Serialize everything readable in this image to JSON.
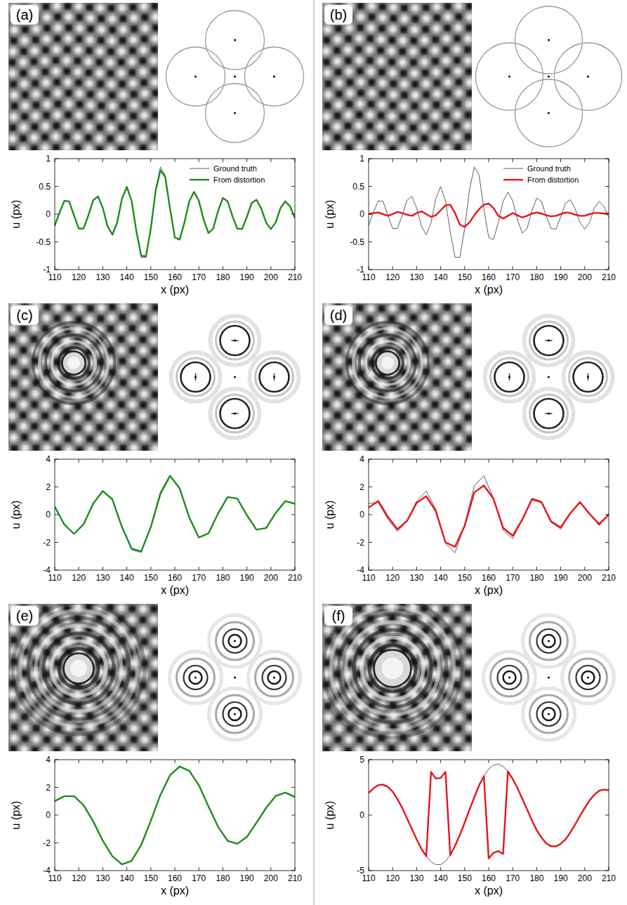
{
  "chart_data": [
    {
      "type": "line",
      "title": "(a)",
      "x_label": "x (px)",
      "y_label": "u (px)",
      "legend": "upper right",
      "x": [
        110,
        112,
        114,
        116,
        118,
        120,
        122,
        124,
        126,
        128,
        130,
        132,
        134,
        136,
        138,
        140,
        142,
        144,
        146,
        148,
        150,
        152,
        154,
        156,
        158,
        160,
        162,
        164,
        166,
        168,
        170,
        172,
        174,
        176,
        178,
        180,
        182,
        184,
        186,
        188,
        190,
        192,
        194,
        196,
        198,
        200,
        202,
        204,
        206,
        208,
        210
      ],
      "xlim": [
        110,
        210
      ],
      "ylim": [
        -1,
        1
      ],
      "xticks": [
        110,
        120,
        130,
        140,
        150,
        160,
        170,
        180,
        190,
        200,
        210
      ],
      "yticks": [
        -1,
        -0.5,
        0,
        0.5,
        1
      ],
      "series": [
        {
          "name": "Ground truth",
          "color": "#4d4d4d",
          "values": [
            -0.2,
            0.03,
            0.24,
            0.23,
            -0.02,
            -0.26,
            -0.26,
            -0.02,
            0.25,
            0.32,
            0.11,
            -0.22,
            -0.37,
            -0.15,
            0.28,
            0.5,
            0.24,
            -0.32,
            -0.78,
            -0.78,
            -0.26,
            0.44,
            0.85,
            0.7,
            0.1,
            -0.42,
            -0.46,
            -0.15,
            0.23,
            0.4,
            0.24,
            -0.1,
            -0.34,
            -0.26,
            0.06,
            0.29,
            0.23,
            -0.04,
            -0.26,
            -0.27,
            -0.05,
            0.2,
            0.26,
            0.1,
            -0.15,
            -0.27,
            -0.15,
            0.11,
            0.23,
            0.14,
            -0.06
          ]
        },
        {
          "name": "From distortion",
          "color": "#1f8c1f",
          "values": [
            -0.21,
            0.03,
            0.24,
            0.23,
            -0.02,
            -0.26,
            -0.26,
            -0.02,
            0.25,
            0.32,
            0.11,
            -0.22,
            -0.37,
            -0.15,
            0.28,
            0.49,
            0.24,
            -0.31,
            -0.75,
            -0.76,
            -0.26,
            0.42,
            0.79,
            0.67,
            0.1,
            -0.42,
            -0.46,
            -0.15,
            0.23,
            0.4,
            0.24,
            -0.1,
            -0.34,
            -0.26,
            0.06,
            0.29,
            0.23,
            -0.04,
            -0.26,
            -0.27,
            -0.05,
            0.2,
            0.26,
            0.1,
            -0.15,
            -0.27,
            -0.15,
            0.11,
            0.23,
            0.14,
            -0.07
          ]
        }
      ]
    },
    {
      "type": "line",
      "title": "(b)",
      "x_label": "x (px)",
      "y_label": "u (px)",
      "legend": "upper right",
      "x": [
        110,
        112,
        114,
        116,
        118,
        120,
        122,
        124,
        126,
        128,
        130,
        132,
        134,
        136,
        138,
        140,
        142,
        144,
        146,
        148,
        150,
        152,
        154,
        156,
        158,
        160,
        162,
        164,
        166,
        168,
        170,
        172,
        174,
        176,
        178,
        180,
        182,
        184,
        186,
        188,
        190,
        192,
        194,
        196,
        198,
        200,
        202,
        204,
        206,
        208,
        210
      ],
      "xlim": [
        110,
        210
      ],
      "ylim": [
        -1,
        1
      ],
      "xticks": [
        110,
        120,
        130,
        140,
        150,
        160,
        170,
        180,
        190,
        200,
        210
      ],
      "yticks": [
        -1,
        -0.5,
        0,
        0.5,
        1
      ],
      "series": [
        {
          "name": "Ground truth",
          "color": "#4d4d4d",
          "values": [
            -0.2,
            0.03,
            0.24,
            0.23,
            -0.02,
            -0.26,
            -0.26,
            -0.02,
            0.25,
            0.32,
            0.11,
            -0.22,
            -0.37,
            -0.15,
            0.28,
            0.5,
            0.24,
            -0.32,
            -0.78,
            -0.78,
            -0.26,
            0.44,
            0.85,
            0.7,
            0.1,
            -0.42,
            -0.46,
            -0.15,
            0.23,
            0.4,
            0.24,
            -0.1,
            -0.34,
            -0.26,
            0.06,
            0.29,
            0.23,
            -0.04,
            -0.26,
            -0.27,
            -0.05,
            0.2,
            0.26,
            0.1,
            -0.15,
            -0.27,
            -0.15,
            0.11,
            0.23,
            0.14,
            -0.06
          ]
        },
        {
          "name": "From distortion",
          "color": "#e8141c",
          "values": [
            0.0,
            0.02,
            0.03,
            0.0,
            -0.03,
            0.0,
            0.04,
            0.02,
            -0.01,
            -0.03,
            0.02,
            0.05,
            0.0,
            -0.05,
            -0.02,
            0.07,
            0.16,
            0.17,
            0.02,
            -0.19,
            -0.23,
            -0.15,
            -0.02,
            0.09,
            0.17,
            0.19,
            0.11,
            -0.03,
            -0.08,
            -0.03,
            0.02,
            -0.02,
            -0.06,
            -0.03,
            0.01,
            0.03,
            0.01,
            -0.02,
            -0.04,
            -0.03,
            0.0,
            0.03,
            0.02,
            -0.01,
            -0.03,
            -0.03,
            0.0,
            0.02,
            0.02,
            0.01,
            0.01
          ]
        }
      ]
    },
    {
      "type": "line",
      "title": "(c)",
      "x_label": "x (px)",
      "y_label": "u (px)",
      "x": [
        110,
        114,
        118,
        122,
        126,
        130,
        134,
        138,
        142,
        146,
        150,
        154,
        158,
        162,
        166,
        170,
        174,
        178,
        182,
        186,
        190,
        194,
        198,
        202,
        206,
        210
      ],
      "xlim": [
        110,
        210
      ],
      "ylim": [
        -4,
        4
      ],
      "xticks": [
        110,
        120,
        130,
        140,
        150,
        160,
        170,
        180,
        190,
        200,
        210
      ],
      "yticks": [
        -4,
        -2,
        0,
        2,
        4
      ],
      "series": [
        {
          "color": "#4d4d4d",
          "values": [
            0.6,
            -0.75,
            -1.4,
            -0.68,
            0.84,
            1.74,
            1.07,
            -0.83,
            -2.53,
            -2.73,
            -0.83,
            1.64,
            2.85,
            1.84,
            -0.23,
            -1.68,
            -1.32,
            0.11,
            1.29,
            1.14,
            -0.06,
            -1.1,
            -0.95,
            0.15,
            1.0,
            0.75
          ]
        },
        {
          "color": "#1f8c1f",
          "values": [
            0.58,
            -0.72,
            -1.38,
            -0.7,
            0.8,
            1.7,
            1.1,
            -0.9,
            -2.45,
            -2.65,
            -0.9,
            1.5,
            2.8,
            1.9,
            -0.2,
            -1.65,
            -1.35,
            0.08,
            1.27,
            1.16,
            -0.04,
            -1.08,
            -0.97,
            0.12,
            0.98,
            0.78
          ]
        }
      ]
    },
    {
      "type": "line",
      "title": "(d)",
      "x_label": "x (px)",
      "y_label": "u (px)",
      "x": [
        110,
        114,
        118,
        122,
        126,
        130,
        134,
        138,
        142,
        146,
        150,
        154,
        158,
        162,
        166,
        170,
        174,
        178,
        182,
        186,
        190,
        194,
        198,
        202,
        206,
        210
      ],
      "xlim": [
        110,
        210
      ],
      "ylim": [
        -4,
        4
      ],
      "xticks": [
        110,
        120,
        130,
        140,
        150,
        160,
        170,
        180,
        190,
        200,
        210
      ],
      "yticks": [
        -4,
        -2,
        0,
        2,
        4
      ],
      "series": [
        {
          "color": "#4d4d4d",
          "values": [
            0.8,
            0.89,
            -0.32,
            -1.2,
            -0.48,
            0.98,
            1.7,
            0.38,
            -2.08,
            -2.75,
            -0.72,
            2.06,
            2.82,
            1.16,
            -1.11,
            -1.73,
            -0.35,
            1.19,
            0.96,
            -0.54,
            -1.04,
            0.11,
            0.95,
            0.08,
            -0.8,
            0.1
          ]
        },
        {
          "color": "#e8141c",
          "values": [
            0.5,
            0.98,
            -0.15,
            -1.05,
            -0.45,
            0.85,
            1.33,
            0.25,
            -2.0,
            -2.32,
            -0.8,
            1.6,
            2.1,
            1.15,
            -0.95,
            -1.52,
            -0.35,
            1.1,
            0.9,
            -0.5,
            -0.92,
            0.1,
            0.9,
            0.05,
            -0.68,
            0.0
          ]
        }
      ]
    },
    {
      "type": "line",
      "title": "(e)",
      "x_label": "x (px)",
      "y_label": "u (px)",
      "x": [
        110,
        114,
        118,
        122,
        126,
        130,
        134,
        138,
        142,
        146,
        150,
        154,
        158,
        162,
        166,
        170,
        174,
        178,
        182,
        186,
        190,
        194,
        198,
        202,
        206,
        210
      ],
      "xlim": [
        110,
        210
      ],
      "ylim": [
        -4,
        4
      ],
      "xticks": [
        110,
        120,
        130,
        140,
        150,
        160,
        170,
        180,
        190,
        200,
        210
      ],
      "yticks": [
        -4,
        -2,
        0,
        2,
        4
      ],
      "series": [
        {
          "color": "#4d4d4d",
          "values": [
            1.0,
            1.38,
            1.39,
            0.74,
            -0.47,
            -1.86,
            -2.99,
            -3.58,
            -3.31,
            -2.13,
            -0.38,
            1.48,
            2.9,
            3.54,
            3.22,
            2.14,
            0.61,
            -0.86,
            -1.86,
            -2.08,
            -1.58,
            -0.56,
            0.53,
            1.39,
            1.64,
            1.3
          ]
        },
        {
          "color": "#1f8c1f",
          "values": [
            1.02,
            1.36,
            1.37,
            0.72,
            -0.45,
            -1.84,
            -2.97,
            -3.55,
            -3.3,
            -2.15,
            -0.4,
            1.46,
            2.88,
            3.5,
            3.2,
            2.16,
            0.63,
            -0.84,
            -1.85,
            -2.07,
            -1.57,
            -0.55,
            0.52,
            1.38,
            1.63,
            1.31
          ]
        }
      ]
    },
    {
      "type": "line",
      "title": "(f)",
      "x_label": "x (px)",
      "y_label": "u (px)",
      "x": [
        110,
        112,
        114,
        116,
        118,
        120,
        122,
        124,
        126,
        128,
        130,
        132,
        134,
        136,
        138,
        140,
        142,
        144,
        146,
        148,
        150,
        152,
        154,
        156,
        158,
        160,
        162,
        164,
        166,
        168,
        170,
        172,
        174,
        176,
        178,
        180,
        182,
        184,
        186,
        188,
        190,
        192,
        194,
        196,
        198,
        200,
        202,
        204,
        206,
        208,
        210
      ],
      "xlim": [
        110,
        210
      ],
      "ylim": [
        -5,
        5
      ],
      "xticks": [
        110,
        120,
        130,
        140,
        150,
        160,
        170,
        180,
        190,
        200,
        210
      ],
      "yticks": [
        -5,
        0,
        5
      ],
      "series": [
        {
          "color": "#4d4d4d",
          "values": [
            2.0,
            2.4,
            2.7,
            2.75,
            2.55,
            2.12,
            1.45,
            0.65,
            -0.3,
            -1.24,
            -2.18,
            -3.05,
            -3.7,
            -4.21,
            -4.46,
            -4.46,
            -4.17,
            -3.61,
            -2.77,
            -1.77,
            -0.68,
            0.5,
            1.6,
            2.69,
            3.51,
            4.15,
            4.51,
            4.59,
            4.4,
            3.95,
            3.26,
            2.44,
            1.47,
            0.5,
            -0.47,
            -1.36,
            -2.03,
            -2.55,
            -2.81,
            -2.82,
            -2.59,
            -2.18,
            -1.56,
            -0.84,
            -0.07,
            0.65,
            1.32,
            1.84,
            2.2,
            2.3,
            2.25
          ]
        },
        {
          "color": "#e8141c",
          "values": [
            2.0,
            2.4,
            2.7,
            2.75,
            2.55,
            2.12,
            1.45,
            0.65,
            -0.3,
            -1.24,
            -2.18,
            -3.05,
            -3.7,
            3.9,
            3.3,
            3.35,
            3.9,
            -3.61,
            -2.77,
            -1.77,
            -0.68,
            0.5,
            1.6,
            2.69,
            3.51,
            -3.9,
            -3.4,
            -3.25,
            -3.5,
            3.95,
            3.26,
            2.44,
            1.47,
            0.5,
            -0.47,
            -1.36,
            -2.03,
            -2.55,
            -2.81,
            -2.82,
            -2.59,
            -2.18,
            -1.56,
            -0.84,
            -0.07,
            0.65,
            1.32,
            1.84,
            2.2,
            2.3,
            2.25
          ]
        }
      ]
    }
  ]
}
